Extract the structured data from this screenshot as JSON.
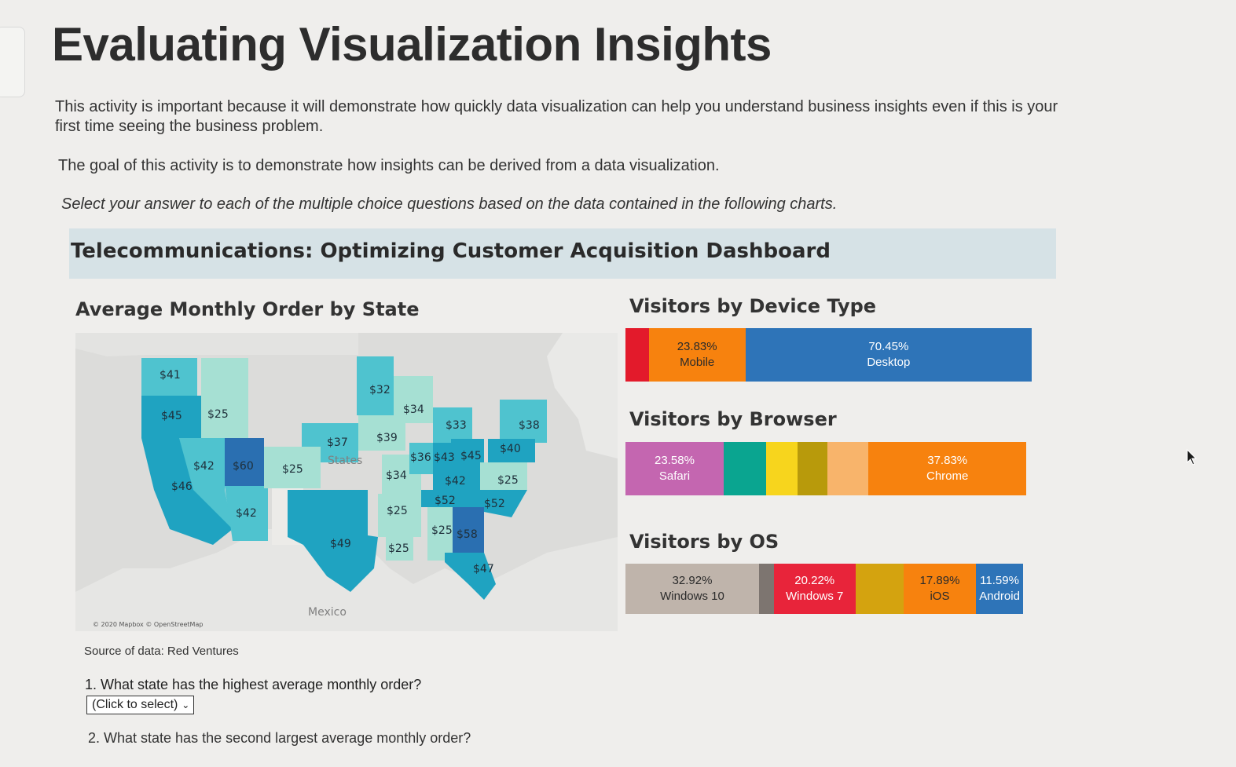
{
  "page": {
    "title": "Evaluating Visualization Insights",
    "intro": "This activity is important because it will demonstrate how quickly data visualization can help you understand business insights even if this is your first time seeing the business problem.",
    "goal": "The goal of this activity is to demonstrate how insights can be derived from a data visualization.",
    "instruction": "Select your answer to each of the multiple choice questions based on the data contained in the following charts."
  },
  "dashboard": {
    "title": "Telecommunications: Optimizing Customer Acquisition Dashboard",
    "map": {
      "title": "Average Monthly Order by State",
      "attribution": "© 2020 Mapbox © OpenStreetMap",
      "country_label": "Mexico",
      "states_label": "States",
      "source_note": "Source of data: Red Ventures"
    },
    "device": {
      "title": "Visitors by Device Type"
    },
    "browser": {
      "title": "Visitors by Browser"
    },
    "os": {
      "title": "Visitors by OS"
    }
  },
  "questions": {
    "q1": "1. What state has the highest average monthly order?",
    "q1_select": "(Click to select)",
    "q2": "2. What state has the second largest average monthly order?"
  },
  "colors": {
    "map_light": "#a6e0d3",
    "map_mid": "#4fc3cf",
    "map_teal": "#1fa3c1",
    "map_dark": "#2a6fb1",
    "red": "#e31a2b",
    "orange": "#f7820e",
    "blue": "#2e74b8",
    "pink": "#c466b0",
    "teal": "#0aa590",
    "yellow": "#f7d51d",
    "olive": "#b89a0b",
    "peach": "#f8b46b",
    "gray": "#bfb4ab",
    "crimson": "#e8243a",
    "gold": "#d4a30f",
    "darkgray": "#7d7570"
  },
  "chart_data": [
    {
      "type": "map",
      "title": "Average Monthly Order by State",
      "unit": "$",
      "labels": [
        "$41",
        "$45",
        "$25",
        "$46",
        "$42",
        "$60",
        "$42",
        "$25",
        "$37",
        "$32",
        "$34",
        "$39",
        "$34",
        "$33",
        "$38",
        "$36",
        "$43",
        "$45",
        "$40",
        "$42",
        "$25",
        "$52",
        "$52",
        "$25",
        "$49",
        "$25",
        "$25",
        "$58",
        "$47"
      ]
    },
    {
      "type": "bar",
      "stacked": true,
      "title": "Visitors by Device Type",
      "segments": [
        {
          "name": "",
          "value": 5.72,
          "label": "",
          "color": "red"
        },
        {
          "name": "Mobile",
          "value": 23.83,
          "label": "23.83%",
          "color": "orange"
        },
        {
          "name": "Desktop",
          "value": 70.45,
          "label": "70.45%",
          "color": "blue"
        }
      ]
    },
    {
      "type": "bar",
      "stacked": true,
      "title": "Visitors by Browser",
      "segments": [
        {
          "name": "Safari",
          "value": 23.58,
          "label": "23.58%",
          "color": "pink"
        },
        {
          "name": "",
          "value": 10.2,
          "label": "",
          "color": "teal"
        },
        {
          "name": "",
          "value": 7.6,
          "label": "",
          "color": "yellow"
        },
        {
          "name": "",
          "value": 7.2,
          "label": "",
          "color": "olive"
        },
        {
          "name": "",
          "value": 9.8,
          "label": "",
          "color": "peach"
        },
        {
          "name": "Chrome",
          "value": 37.83,
          "label": "37.83%",
          "color": "orange"
        }
      ]
    },
    {
      "type": "bar",
      "stacked": true,
      "title": "Visitors by OS",
      "segments": [
        {
          "name": "Windows 10",
          "value": 32.92,
          "label": "32.92%",
          "color": "gray"
        },
        {
          "name": "",
          "value": 3.6,
          "label": "",
          "color": "darkgray"
        },
        {
          "name": "Windows 7",
          "value": 20.22,
          "label": "20.22%",
          "color": "crimson"
        },
        {
          "name": "",
          "value": 11.8,
          "label": "",
          "color": "gold"
        },
        {
          "name": "iOS",
          "value": 17.89,
          "label": "17.89%",
          "color": "orange"
        },
        {
          "name": "Android",
          "value": 11.59,
          "label": "11.59%",
          "color": "blue"
        }
      ]
    }
  ]
}
